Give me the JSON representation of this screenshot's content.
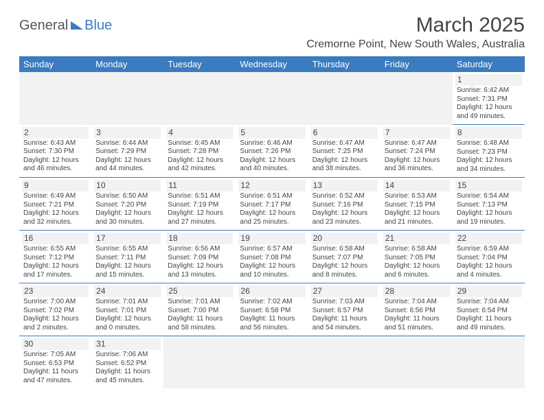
{
  "logo": {
    "text1": "General",
    "text2": "Blue"
  },
  "title": "March 2025",
  "location": "Cremorne Point, New South Wales, Australia",
  "columns": [
    "Sunday",
    "Monday",
    "Tuesday",
    "Wednesday",
    "Thursday",
    "Friday",
    "Saturday"
  ],
  "colors": {
    "header_bg": "#3b7bbf",
    "header_fg": "#ffffff",
    "border": "#3b7bbf",
    "text": "#444444"
  },
  "weeks": [
    [
      null,
      null,
      null,
      null,
      null,
      null,
      {
        "n": "1",
        "sr": "Sunrise: 6:42 AM",
        "ss": "Sunset: 7:31 PM",
        "dl": "Daylight: 12 hours and 49 minutes."
      }
    ],
    [
      {
        "n": "2",
        "sr": "Sunrise: 6:43 AM",
        "ss": "Sunset: 7:30 PM",
        "dl": "Daylight: 12 hours and 46 minutes."
      },
      {
        "n": "3",
        "sr": "Sunrise: 6:44 AM",
        "ss": "Sunset: 7:29 PM",
        "dl": "Daylight: 12 hours and 44 minutes."
      },
      {
        "n": "4",
        "sr": "Sunrise: 6:45 AM",
        "ss": "Sunset: 7:28 PM",
        "dl": "Daylight: 12 hours and 42 minutes."
      },
      {
        "n": "5",
        "sr": "Sunrise: 6:46 AM",
        "ss": "Sunset: 7:26 PM",
        "dl": "Daylight: 12 hours and 40 minutes."
      },
      {
        "n": "6",
        "sr": "Sunrise: 6:47 AM",
        "ss": "Sunset: 7:25 PM",
        "dl": "Daylight: 12 hours and 38 minutes."
      },
      {
        "n": "7",
        "sr": "Sunrise: 6:47 AM",
        "ss": "Sunset: 7:24 PM",
        "dl": "Daylight: 12 hours and 36 minutes."
      },
      {
        "n": "8",
        "sr": "Sunrise: 6:48 AM",
        "ss": "Sunset: 7:23 PM",
        "dl": "Daylight: 12 hours and 34 minutes."
      }
    ],
    [
      {
        "n": "9",
        "sr": "Sunrise: 6:49 AM",
        "ss": "Sunset: 7:21 PM",
        "dl": "Daylight: 12 hours and 32 minutes."
      },
      {
        "n": "10",
        "sr": "Sunrise: 6:50 AM",
        "ss": "Sunset: 7:20 PM",
        "dl": "Daylight: 12 hours and 30 minutes."
      },
      {
        "n": "11",
        "sr": "Sunrise: 6:51 AM",
        "ss": "Sunset: 7:19 PM",
        "dl": "Daylight: 12 hours and 27 minutes."
      },
      {
        "n": "12",
        "sr": "Sunrise: 6:51 AM",
        "ss": "Sunset: 7:17 PM",
        "dl": "Daylight: 12 hours and 25 minutes."
      },
      {
        "n": "13",
        "sr": "Sunrise: 6:52 AM",
        "ss": "Sunset: 7:16 PM",
        "dl": "Daylight: 12 hours and 23 minutes."
      },
      {
        "n": "14",
        "sr": "Sunrise: 6:53 AM",
        "ss": "Sunset: 7:15 PM",
        "dl": "Daylight: 12 hours and 21 minutes."
      },
      {
        "n": "15",
        "sr": "Sunrise: 6:54 AM",
        "ss": "Sunset: 7:13 PM",
        "dl": "Daylight: 12 hours and 19 minutes."
      }
    ],
    [
      {
        "n": "16",
        "sr": "Sunrise: 6:55 AM",
        "ss": "Sunset: 7:12 PM",
        "dl": "Daylight: 12 hours and 17 minutes."
      },
      {
        "n": "17",
        "sr": "Sunrise: 6:55 AM",
        "ss": "Sunset: 7:11 PM",
        "dl": "Daylight: 12 hours and 15 minutes."
      },
      {
        "n": "18",
        "sr": "Sunrise: 6:56 AM",
        "ss": "Sunset: 7:09 PM",
        "dl": "Daylight: 12 hours and 13 minutes."
      },
      {
        "n": "19",
        "sr": "Sunrise: 6:57 AM",
        "ss": "Sunset: 7:08 PM",
        "dl": "Daylight: 12 hours and 10 minutes."
      },
      {
        "n": "20",
        "sr": "Sunrise: 6:58 AM",
        "ss": "Sunset: 7:07 PM",
        "dl": "Daylight: 12 hours and 8 minutes."
      },
      {
        "n": "21",
        "sr": "Sunrise: 6:58 AM",
        "ss": "Sunset: 7:05 PM",
        "dl": "Daylight: 12 hours and 6 minutes."
      },
      {
        "n": "22",
        "sr": "Sunrise: 6:59 AM",
        "ss": "Sunset: 7:04 PM",
        "dl": "Daylight: 12 hours and 4 minutes."
      }
    ],
    [
      {
        "n": "23",
        "sr": "Sunrise: 7:00 AM",
        "ss": "Sunset: 7:02 PM",
        "dl": "Daylight: 12 hours and 2 minutes."
      },
      {
        "n": "24",
        "sr": "Sunrise: 7:01 AM",
        "ss": "Sunset: 7:01 PM",
        "dl": "Daylight: 12 hours and 0 minutes."
      },
      {
        "n": "25",
        "sr": "Sunrise: 7:01 AM",
        "ss": "Sunset: 7:00 PM",
        "dl": "Daylight: 11 hours and 58 minutes."
      },
      {
        "n": "26",
        "sr": "Sunrise: 7:02 AM",
        "ss": "Sunset: 6:58 PM",
        "dl": "Daylight: 11 hours and 56 minutes."
      },
      {
        "n": "27",
        "sr": "Sunrise: 7:03 AM",
        "ss": "Sunset: 6:57 PM",
        "dl": "Daylight: 11 hours and 54 minutes."
      },
      {
        "n": "28",
        "sr": "Sunrise: 7:04 AM",
        "ss": "Sunset: 6:56 PM",
        "dl": "Daylight: 11 hours and 51 minutes."
      },
      {
        "n": "29",
        "sr": "Sunrise: 7:04 AM",
        "ss": "Sunset: 6:54 PM",
        "dl": "Daylight: 11 hours and 49 minutes."
      }
    ],
    [
      {
        "n": "30",
        "sr": "Sunrise: 7:05 AM",
        "ss": "Sunset: 6:53 PM",
        "dl": "Daylight: 11 hours and 47 minutes."
      },
      {
        "n": "31",
        "sr": "Sunrise: 7:06 AM",
        "ss": "Sunset: 6:52 PM",
        "dl": "Daylight: 11 hours and 45 minutes."
      },
      null,
      null,
      null,
      null,
      null
    ]
  ]
}
